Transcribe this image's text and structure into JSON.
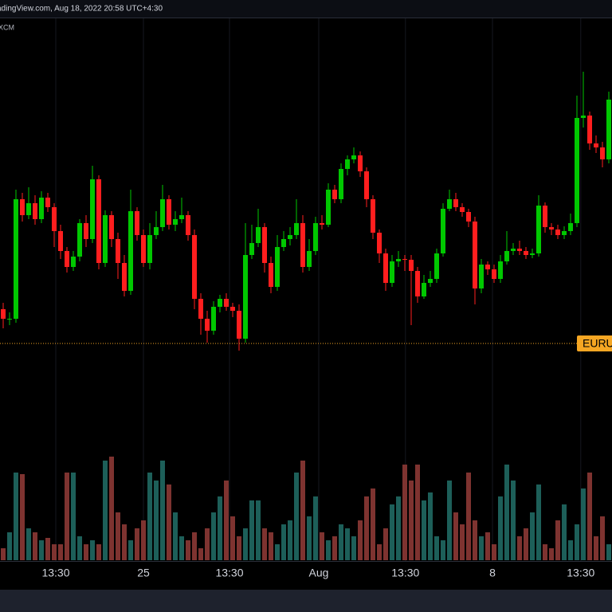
{
  "chart_data": {
    "type": "candlestick",
    "title": "adingView.com, Aug 18, 2022 20:58 UTC+4:30",
    "subtitle": "XCM",
    "up_color": "#00c800",
    "down_color": "#ff1e1e",
    "volume_up_color": "#1d5f59",
    "volume_down_color": "#7e3330",
    "price_line": {
      "value": 29,
      "label": "EURU",
      "color": "#f5a623"
    },
    "ylim": [
      0,
      400
    ],
    "vlim": [
      0,
      200
    ],
    "xticks": [
      {
        "value": 8.25,
        "label": "13:30"
      },
      {
        "value": 22,
        "label": "25"
      },
      {
        "value": 35.5,
        "label": "13:30"
      },
      {
        "value": 49.5,
        "label": "Aug"
      },
      {
        "value": 63.1,
        "label": "13:30"
      },
      {
        "value": 76.75,
        "label": "8"
      },
      {
        "value": 90.6,
        "label": "13:30"
      }
    ],
    "open": [
      72,
      60,
      60,
      210,
      190,
      205,
      185,
      212,
      200,
      170,
      145,
      125,
      138,
      180,
      160,
      235,
      130,
      190,
      160,
      130,
      95,
      195,
      165,
      130,
      165,
      175,
      210,
      178,
      185,
      190,
      165,
      85,
      60,
      45,
      75,
      85,
      75,
      70,
      35,
      140,
      155,
      175,
      130,
      100,
      150,
      160,
      165,
      180,
      125,
      145,
      180,
      178,
      222,
      210,
      248,
      260,
      265,
      245,
      210,
      168,
      142,
      105,
      132,
      135,
      134,
      120,
      88,
      105,
      110,
      142,
      198,
      210,
      200,
      194,
      182,
      98,
      128,
      122,
      110,
      132,
      145,
      148,
      145,
      140,
      142,
      202,
      175,
      172,
      165,
      170,
      180,
      312,
      315,
      280,
      275,
      260
    ],
    "high": [
      80,
      68,
      222,
      218,
      225,
      215,
      220,
      218,
      205,
      178,
      150,
      145,
      185,
      190,
      252,
      240,
      196,
      195,
      168,
      140,
      222,
      200,
      172,
      180,
      195,
      228,
      215,
      195,
      212,
      195,
      172,
      92,
      70,
      82,
      90,
      92,
      80,
      78,
      180,
      178,
      198,
      180,
      138,
      165,
      170,
      175,
      210,
      190,
      160,
      188,
      190,
      230,
      228,
      255,
      265,
      275,
      270,
      250,
      215,
      172,
      148,
      140,
      145,
      140,
      140,
      125,
      115,
      120,
      148,
      205,
      222,
      218,
      205,
      198,
      188,
      135,
      132,
      128,
      140,
      170,
      155,
      158,
      150,
      148,
      215,
      206,
      180,
      178,
      176,
      192,
      340,
      370,
      320,
      290,
      282,
      345
    ],
    "low": [
      48,
      52,
      55,
      182,
      185,
      178,
      180,
      194,
      150,
      135,
      118,
      120,
      132,
      150,
      155,
      122,
      125,
      150,
      110,
      88,
      90,
      158,
      125,
      122,
      160,
      170,
      172,
      170,
      180,
      158,
      72,
      40,
      30,
      40,
      68,
      70,
      62,
      20,
      30,
      135,
      150,
      118,
      92,
      95,
      145,
      152,
      160,
      118,
      120,
      140,
      172,
      175,
      205,
      205,
      240,
      255,
      238,
      200,
      160,
      130,
      95,
      100,
      125,
      120,
      52,
      80,
      85,
      100,
      105,
      138,
      195,
      195,
      188,
      175,
      78,
      92,
      115,
      105,
      105,
      128,
      140,
      140,
      135,
      136,
      138,
      168,
      165,
      160,
      160,
      165,
      175,
      300,
      272,
      268,
      250,
      255
    ],
    "close": [
      60,
      60,
      210,
      190,
      205,
      185,
      212,
      200,
      170,
      145,
      125,
      138,
      180,
      160,
      235,
      130,
      190,
      160,
      130,
      95,
      195,
      165,
      130,
      165,
      175,
      210,
      178,
      185,
      190,
      165,
      85,
      60,
      45,
      75,
      85,
      75,
      70,
      35,
      140,
      155,
      175,
      130,
      100,
      150,
      160,
      165,
      180,
      125,
      145,
      180,
      178,
      222,
      210,
      248,
      260,
      265,
      245,
      210,
      168,
      142,
      105,
      132,
      135,
      134,
      120,
      88,
      105,
      110,
      142,
      198,
      210,
      200,
      194,
      182,
      98,
      128,
      122,
      110,
      132,
      145,
      148,
      145,
      140,
      142,
      202,
      175,
      172,
      165,
      170,
      180,
      312,
      315,
      280,
      275,
      260,
      335
    ],
    "volume": [
      15,
      35,
      110,
      108,
      40,
      35,
      25,
      28,
      20,
      20,
      110,
      110,
      30,
      20,
      25,
      20,
      125,
      130,
      60,
      45,
      25,
      40,
      50,
      110,
      100,
      125,
      95,
      60,
      30,
      25,
      35,
      15,
      40,
      60,
      80,
      100,
      55,
      30,
      40,
      75,
      75,
      40,
      35,
      20,
      45,
      50,
      110,
      125,
      55,
      80,
      35,
      25,
      30,
      45,
      40,
      30,
      50,
      80,
      90,
      20,
      40,
      70,
      80,
      120,
      100,
      120,
      75,
      85,
      30,
      25,
      100,
      60,
      45,
      110,
      50,
      30,
      35,
      20,
      80,
      120,
      100,
      30,
      40,
      60,
      95,
      20,
      15,
      50,
      70,
      25,
      45,
      90,
      110,
      30,
      55,
      20
    ]
  }
}
